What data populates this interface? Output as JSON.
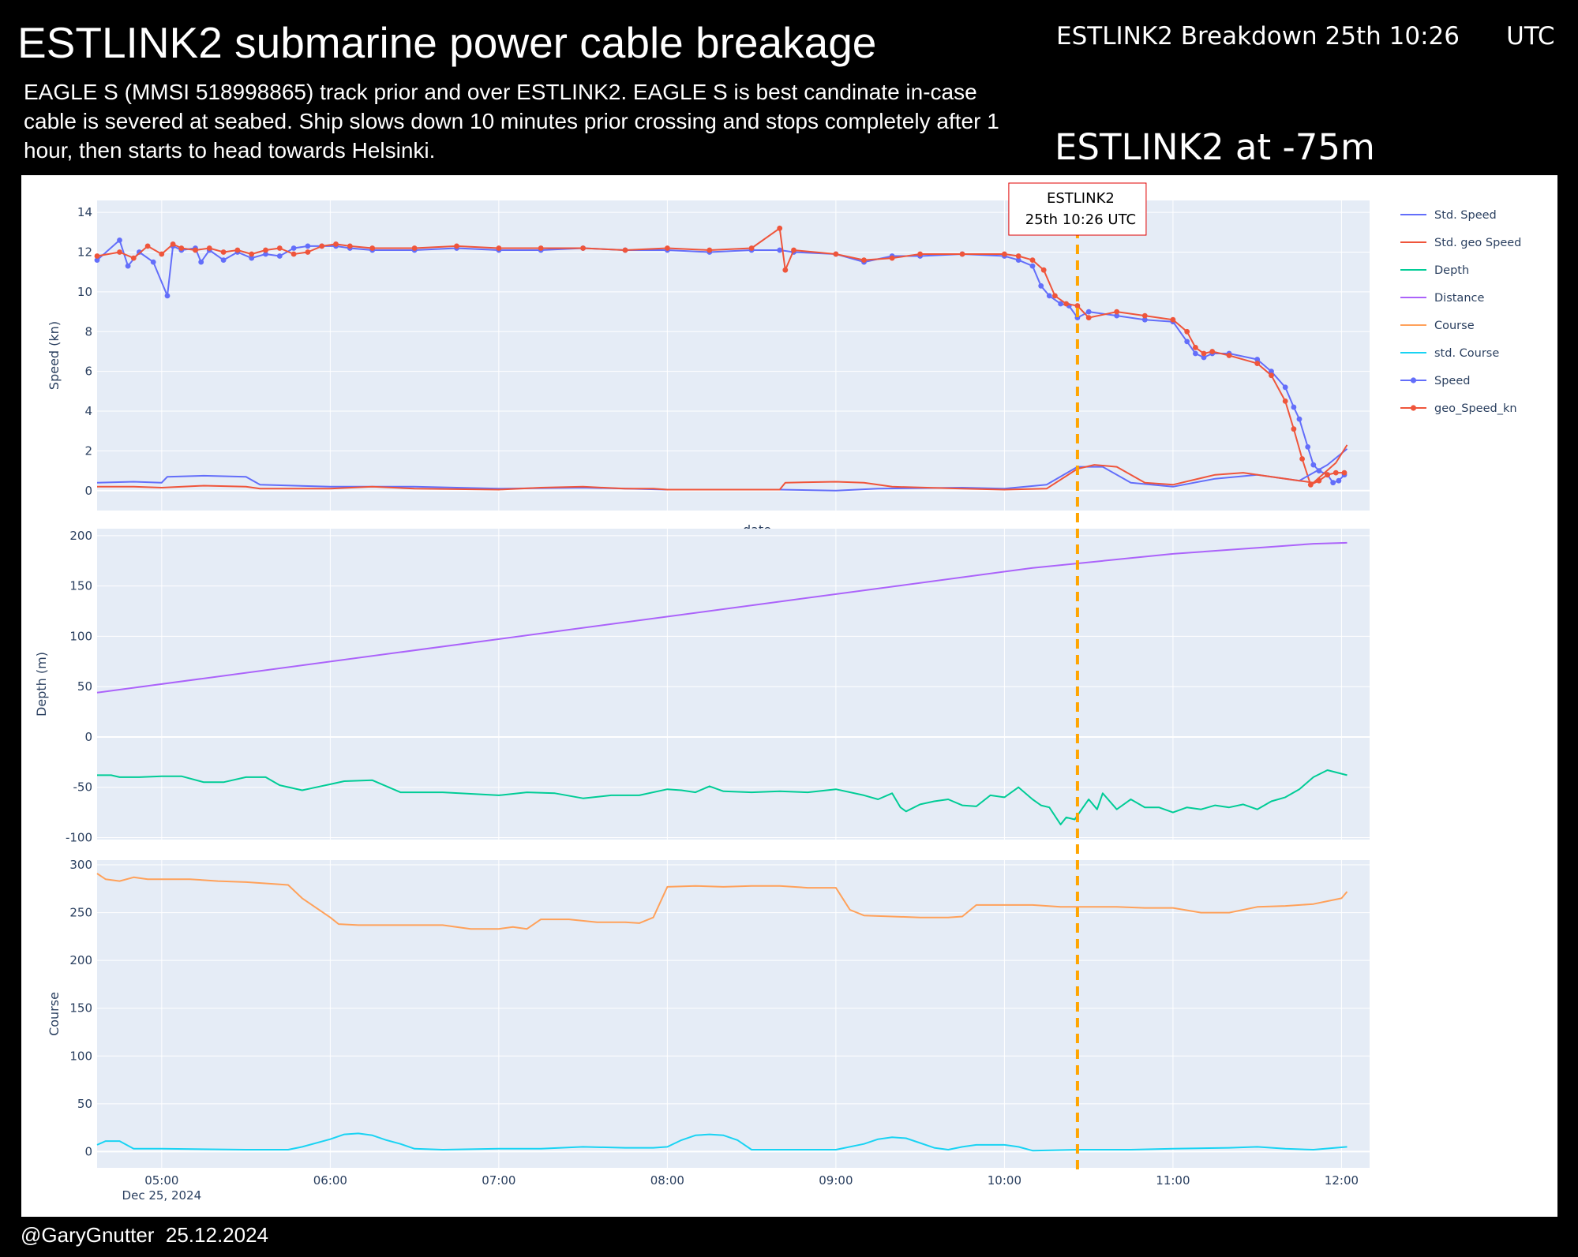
{
  "header": {
    "title": "ESTLINK2  submarine power cable breakage",
    "subtitle": "EAGLE S (MMSI 518998865) track prior and over ESTLINK2.  EAGLE S is best candinate in-case cable is severed at seabed. Ship slows down 10 minutes prior crossing and stops completely after 1 hour, then starts to head towards Helsinki.",
    "breakdown": "ESTLINK2 Breakdown 25th 10:26      UTC",
    "depth_note": "ESTLINK2 at -75m"
  },
  "footer": {
    "credit": "@GaryGnutter  25.12.2024"
  },
  "colors": {
    "std_speed": "#636efa",
    "std_geo_speed": "#ef553b",
    "depth": "#00cc96",
    "distance": "#ab63fa",
    "course": "#ffa15a",
    "std_course": "#19d3f3",
    "speed": "#636efa",
    "geo_speed": "#ef553b",
    "event": "#ffa500",
    "plot_bg": "#e5ecf6"
  },
  "chart_data": {
    "type": "line",
    "legend": {
      "placement": "right",
      "entries": [
        "Std. Speed",
        "Std. geo Speed",
        "Depth",
        "Distance",
        "Course",
        "std. Course",
        "Speed",
        "geo_Speed_kn"
      ]
    },
    "x_axis": {
      "tick_labels": [
        "05:00",
        "06:00",
        "07:00",
        "08:00",
        "09:00",
        "10:00",
        "11:00",
        "12:00"
      ],
      "date_label": "Dec 25, 2024",
      "label": "date",
      "range": [
        "04:37",
        "12:10"
      ]
    },
    "event": {
      "x": "10:26",
      "label_line1": "ESTLINK2",
      "label_line2": "25th 10:26 UTC"
    },
    "panels": [
      {
        "id": "speed",
        "ylabel": "Speed (kn)",
        "ylim": [
          -1,
          14.6
        ],
        "yticks": [
          0,
          2,
          4,
          6,
          8,
          10,
          12,
          14
        ],
        "series": [
          {
            "name": "Speed",
            "key": "speed",
            "markers": true,
            "x": [
              "04:37",
              "04:45",
              "04:48",
              "04:52",
              "04:57",
              "05:02",
              "05:04",
              "05:07",
              "05:12",
              "05:14",
              "05:17",
              "05:22",
              "05:27",
              "05:32",
              "05:37",
              "05:42",
              "05:47",
              "05:52",
              "05:57",
              "06:02",
              "06:07",
              "06:15",
              "06:30",
              "06:45",
              "07:00",
              "07:15",
              "07:30",
              "07:45",
              "08:00",
              "08:15",
              "08:30",
              "08:40",
              "08:45",
              "09:00",
              "09:10",
              "09:20",
              "09:30",
              "09:45",
              "10:00",
              "10:05",
              "10:10",
              "10:13",
              "10:16",
              "10:20",
              "10:23",
              "10:26",
              "10:30",
              "10:40",
              "10:50",
              "11:00",
              "11:05",
              "11:08",
              "11:11",
              "11:14",
              "11:20",
              "11:30",
              "11:35",
              "11:40",
              "11:43",
              "11:45",
              "11:48",
              "11:50",
              "11:52",
              "11:55",
              "11:57",
              "11:59",
              "12:01"
            ],
            "y": [
              11.6,
              12.6,
              11.3,
              12.0,
              11.5,
              9.8,
              12.3,
              12.1,
              12.2,
              11.5,
              12.1,
              11.6,
              12.0,
              11.7,
              11.9,
              11.8,
              12.2,
              12.3,
              12.3,
              12.3,
              12.2,
              12.1,
              12.1,
              12.2,
              12.1,
              12.1,
              12.2,
              12.1,
              12.1,
              12.0,
              12.1,
              12.1,
              12.0,
              11.9,
              11.5,
              11.8,
              11.8,
              11.9,
              11.8,
              11.6,
              11.3,
              10.3,
              9.8,
              9.4,
              9.3,
              8.7,
              9.0,
              8.8,
              8.6,
              8.5,
              7.5,
              6.9,
              6.7,
              6.9,
              6.9,
              6.6,
              6.0,
              5.2,
              4.2,
              3.6,
              2.2,
              1.3,
              1.0,
              0.8,
              0.4,
              0.5,
              0.8
            ]
          },
          {
            "name": "geo_Speed_kn",
            "key": "geo_speed",
            "markers": true,
            "x": [
              "04:37",
              "04:45",
              "04:50",
              "04:55",
              "05:00",
              "05:04",
              "05:07",
              "05:12",
              "05:17",
              "05:22",
              "05:27",
              "05:32",
              "05:37",
              "05:42",
              "05:47",
              "05:52",
              "05:57",
              "06:02",
              "06:07",
              "06:15",
              "06:30",
              "06:45",
              "07:00",
              "07:15",
              "07:30",
              "07:45",
              "08:00",
              "08:15",
              "08:30",
              "08:40",
              "08:42",
              "08:45",
              "09:00",
              "09:10",
              "09:20",
              "09:30",
              "09:45",
              "10:00",
              "10:05",
              "10:10",
              "10:14",
              "10:18",
              "10:22",
              "10:26",
              "10:30",
              "10:40",
              "10:50",
              "11:00",
              "11:05",
              "11:08",
              "11:11",
              "11:14",
              "11:20",
              "11:30",
              "11:35",
              "11:40",
              "11:43",
              "11:46",
              "11:49",
              "11:52",
              "11:55",
              "11:58",
              "12:01"
            ],
            "y": [
              11.8,
              12.0,
              11.7,
              12.3,
              11.9,
              12.4,
              12.2,
              12.1,
              12.2,
              12.0,
              12.1,
              11.9,
              12.1,
              12.2,
              11.9,
              12.0,
              12.3,
              12.4,
              12.3,
              12.2,
              12.2,
              12.3,
              12.2,
              12.2,
              12.2,
              12.1,
              12.2,
              12.1,
              12.2,
              13.2,
              11.1,
              12.1,
              11.9,
              11.6,
              11.7,
              11.9,
              11.9,
              11.9,
              11.8,
              11.6,
              11.1,
              9.8,
              9.4,
              9.3,
              8.7,
              9.0,
              8.8,
              8.6,
              8.0,
              7.2,
              6.9,
              7.0,
              6.8,
              6.4,
              5.8,
              4.5,
              3.1,
              1.6,
              0.3,
              0.5,
              0.8,
              0.9,
              0.9
            ]
          },
          {
            "name": "Std. Speed",
            "key": "std_speed",
            "markers": false,
            "x": [
              "04:37",
              "04:50",
              "05:00",
              "05:02",
              "05:15",
              "05:30",
              "05:35",
              "06:00",
              "06:30",
              "07:00",
              "07:30",
              "08:00",
              "08:30",
              "08:40",
              "09:00",
              "09:15",
              "09:45",
              "10:00",
              "10:15",
              "10:26",
              "10:35",
              "10:45",
              "11:00",
              "11:15",
              "11:30",
              "11:45",
              "11:55",
              "12:02"
            ],
            "y": [
              0.4,
              0.45,
              0.4,
              0.7,
              0.75,
              0.7,
              0.3,
              0.2,
              0.2,
              0.1,
              0.15,
              0.05,
              0.05,
              0.05,
              0.0,
              0.1,
              0.15,
              0.1,
              0.3,
              1.2,
              1.2,
              0.4,
              0.2,
              0.6,
              0.8,
              0.5,
              1.3,
              2.1
            ]
          },
          {
            "name": "Std. geo Speed",
            "key": "std_geo_speed",
            "markers": false,
            "x": [
              "04:37",
              "04:50",
              "05:00",
              "05:15",
              "05:30",
              "05:35",
              "06:00",
              "06:15",
              "06:30",
              "07:00",
              "07:15",
              "07:30",
              "07:45",
              "07:55",
              "08:00",
              "08:30",
              "08:40",
              "08:42",
              "09:00",
              "09:10",
              "09:20",
              "09:45",
              "10:00",
              "10:15",
              "10:26",
              "10:32",
              "10:40",
              "10:50",
              "11:00",
              "11:15",
              "11:25",
              "11:45",
              "11:50",
              "11:58",
              "12:02"
            ],
            "y": [
              0.2,
              0.2,
              0.15,
              0.25,
              0.2,
              0.1,
              0.1,
              0.2,
              0.1,
              0.05,
              0.15,
              0.2,
              0.1,
              0.1,
              0.05,
              0.05,
              0.05,
              0.4,
              0.45,
              0.4,
              0.2,
              0.1,
              0.05,
              0.1,
              1.1,
              1.3,
              1.2,
              0.4,
              0.3,
              0.8,
              0.9,
              0.5,
              0.4,
              1.4,
              2.3
            ]
          }
        ]
      },
      {
        "id": "depth_distance",
        "ylabel": "Depth (m)",
        "ylim": [
          -102,
          207
        ],
        "yticks": [
          -100,
          -50,
          0,
          50,
          100,
          150,
          200
        ],
        "series": [
          {
            "name": "Distance",
            "key": "distance",
            "markers": false,
            "x": [
              "04:37",
              "10:10",
              "11:00",
              "11:35",
              "11:50",
              "12:02"
            ],
            "y": [
              44,
              168,
              182,
              189,
              192,
              193
            ]
          },
          {
            "name": "Depth",
            "key": "depth",
            "markers": false,
            "x": [
              "04:37",
              "04:42",
              "04:45",
              "04:52",
              "05:00",
              "05:07",
              "05:15",
              "05:22",
              "05:30",
              "05:37",
              "05:42",
              "05:50",
              "05:55",
              "06:00",
              "06:05",
              "06:15",
              "06:25",
              "06:40",
              "07:00",
              "07:10",
              "07:20",
              "07:30",
              "07:40",
              "07:50",
              "08:00",
              "08:05",
              "08:10",
              "08:15",
              "08:20",
              "08:30",
              "08:40",
              "08:50",
              "09:00",
              "09:10",
              "09:15",
              "09:20",
              "09:23",
              "09:25",
              "09:30",
              "09:35",
              "09:40",
              "09:45",
              "09:50",
              "09:55",
              "10:00",
              "10:05",
              "10:10",
              "10:13",
              "10:16",
              "10:20",
              "10:22",
              "10:25",
              "10:28",
              "10:30",
              "10:33",
              "10:35",
              "10:40",
              "10:45",
              "10:50",
              "10:55",
              "11:00",
              "11:05",
              "11:10",
              "11:15",
              "11:20",
              "11:25",
              "11:30",
              "11:35",
              "11:40",
              "11:45",
              "11:50",
              "11:55",
              "12:02"
            ],
            "y": [
              -38,
              -38,
              -40,
              -40,
              -39,
              -39,
              -45,
              -45,
              -40,
              -40,
              -48,
              -53,
              -50,
              -47,
              -44,
              -43,
              -55,
              -55,
              -58,
              -55,
              -56,
              -61,
              -58,
              -58,
              -52,
              -53,
              -55,
              -49,
              -54,
              -55,
              -54,
              -55,
              -52,
              -58,
              -62,
              -56,
              -70,
              -74,
              -67,
              -64,
              -62,
              -68,
              -69,
              -58,
              -60,
              -50,
              -62,
              -68,
              -70,
              -87,
              -80,
              -82,
              -70,
              -62,
              -72,
              -56,
              -72,
              -62,
              -70,
              -70,
              -75,
              -70,
              -72,
              -68,
              -70,
              -67,
              -72,
              -64,
              -60,
              -52,
              -40,
              -33,
              -38
            ]
          }
        ]
      },
      {
        "id": "course",
        "ylabel": "Course",
        "ylim": [
          -17,
          305
        ],
        "yticks": [
          0,
          50,
          100,
          150,
          200,
          250,
          300
        ],
        "series": [
          {
            "name": "Course",
            "key": "course",
            "markers": false,
            "x": [
              "04:37",
              "04:40",
              "04:45",
              "04:50",
              "04:55",
              "05:00",
              "05:10",
              "05:20",
              "05:30",
              "05:40",
              "05:45",
              "05:50",
              "06:00",
              "06:03",
              "06:10",
              "06:20",
              "06:30",
              "06:40",
              "06:50",
              "07:00",
              "07:05",
              "07:10",
              "07:15",
              "07:25",
              "07:35",
              "07:45",
              "07:50",
              "07:55",
              "08:00",
              "08:10",
              "08:20",
              "08:30",
              "08:40",
              "08:50",
              "09:00",
              "09:05",
              "09:10",
              "09:20",
              "09:30",
              "09:40",
              "09:45",
              "09:50",
              "10:00",
              "10:10",
              "10:20",
              "10:30",
              "10:40",
              "10:50",
              "11:00",
              "11:10",
              "11:20",
              "11:30",
              "11:40",
              "11:50",
              "12:00",
              "12:02"
            ],
            "y": [
              291,
              285,
              283,
              287,
              285,
              285,
              285,
              283,
              282,
              280,
              279,
              265,
              245,
              238,
              237,
              237,
              237,
              237,
              233,
              233,
              235,
              233,
              243,
              243,
              240,
              240,
              239,
              245,
              277,
              278,
              277,
              278,
              278,
              276,
              276,
              253,
              247,
              246,
              245,
              245,
              246,
              258,
              258,
              258,
              256,
              256,
              256,
              255,
              255,
              250,
              250,
              256,
              257,
              259,
              265,
              272
            ]
          },
          {
            "name": "std. Course",
            "key": "std_course",
            "markers": false,
            "x": [
              "04:37",
              "04:40",
              "04:45",
              "04:50",
              "05:00",
              "05:30",
              "05:45",
              "05:50",
              "06:00",
              "06:05",
              "06:10",
              "06:15",
              "06:20",
              "06:25",
              "06:30",
              "06:40",
              "07:00",
              "07:15",
              "07:30",
              "07:45",
              "07:55",
              "08:00",
              "08:05",
              "08:10",
              "08:15",
              "08:20",
              "08:25",
              "08:30",
              "08:40",
              "09:00",
              "09:10",
              "09:15",
              "09:20",
              "09:25",
              "09:30",
              "09:35",
              "09:40",
              "09:45",
              "09:50",
              "10:00",
              "10:05",
              "10:10",
              "10:26",
              "10:45",
              "11:00",
              "11:20",
              "11:30",
              "11:40",
              "11:50",
              "12:02"
            ],
            "y": [
              7,
              11,
              11,
              3,
              3,
              2,
              2,
              5,
              13,
              18,
              19,
              17,
              12,
              8,
              3,
              2,
              3,
              3,
              5,
              4,
              4,
              5,
              12,
              17,
              18,
              17,
              12,
              2,
              2,
              2,
              8,
              13,
              15,
              14,
              9,
              4,
              2,
              5,
              7,
              7,
              5,
              1,
              2,
              2,
              3,
              4,
              5,
              3,
              2,
              5
            ]
          }
        ]
      }
    ]
  }
}
